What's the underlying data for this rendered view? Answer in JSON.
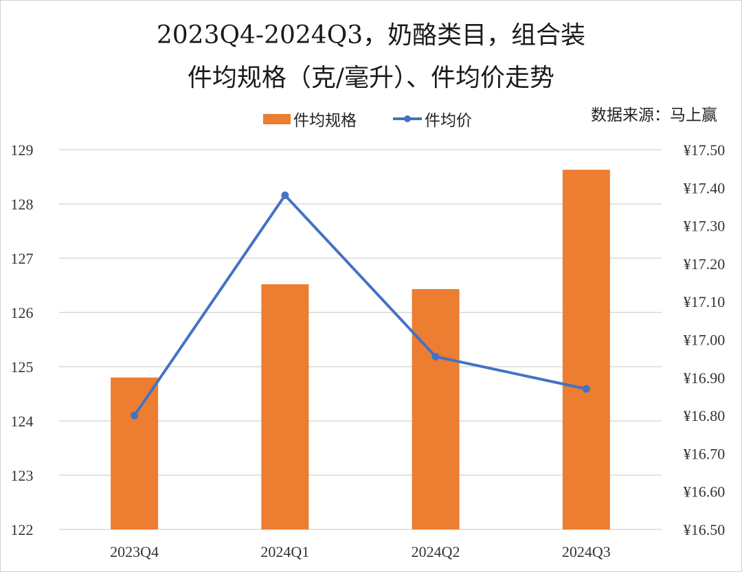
{
  "title": {
    "line1": "2023Q4-2024Q3，奶酪类目，组合装",
    "line2": "件均规格（克/毫升）、件均价走势"
  },
  "source": "数据来源：马上赢",
  "colors": {
    "bar": "#ED7D31",
    "line": "#4472C4",
    "grid": "#D9D9D9"
  },
  "chart_data": {
    "type": "bar",
    "categories": [
      "2023Q4",
      "2024Q1",
      "2024Q2",
      "2024Q3"
    ],
    "series": [
      {
        "name": "件均规格",
        "type": "bar",
        "axis": "left",
        "values": [
          124.8,
          126.52,
          126.43,
          128.63
        ]
      },
      {
        "name": "件均价",
        "type": "line",
        "axis": "right",
        "values": [
          16.8,
          17.38,
          16.955,
          16.87
        ]
      }
    ],
    "y_left": {
      "lim": [
        122,
        129
      ],
      "ticks": [
        "122",
        "123",
        "124",
        "125",
        "126",
        "127",
        "128",
        "129"
      ]
    },
    "y_right": {
      "lim": [
        16.5,
        17.5
      ],
      "ticks": [
        "¥16.50",
        "¥16.60",
        "¥16.70",
        "¥16.80",
        "¥16.90",
        "¥17.00",
        "¥17.10",
        "¥17.20",
        "¥17.30",
        "¥17.40",
        "¥17.50"
      ]
    },
    "grid": true,
    "legend_position": "top"
  }
}
